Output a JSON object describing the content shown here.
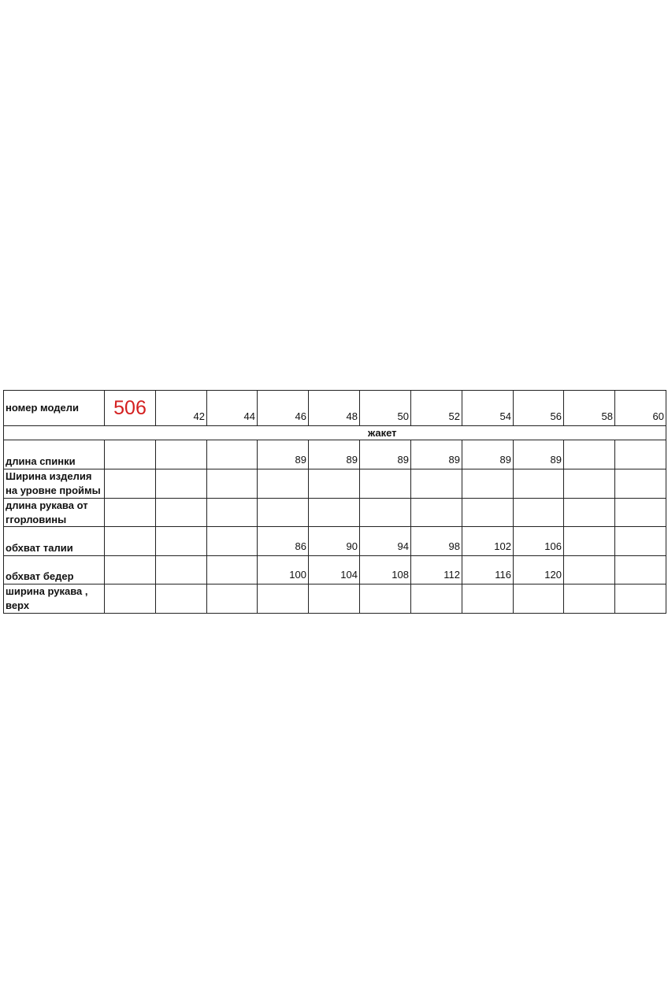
{
  "table": {
    "header_label": "номер модели",
    "model_number": "506",
    "model_color": "#d42020",
    "sizes": [
      "42",
      "44",
      "46",
      "48",
      "50",
      "52",
      "54",
      "56",
      "58",
      "60"
    ],
    "section": "жакет",
    "rows": [
      {
        "label": [
          "длина спинки"
        ],
        "values": [
          "",
          "",
          "89",
          "89",
          "89",
          "89",
          "89",
          "89",
          "",
          ""
        ]
      },
      {
        "label": [
          "Ширина изделия",
          "на уровне проймы"
        ],
        "values": [
          "",
          "",
          "",
          "",
          "",
          "",
          "",
          "",
          "",
          ""
        ]
      },
      {
        "label": [
          "длина рукава от",
          "ггорловины"
        ],
        "values": [
          "",
          "",
          "",
          "",
          "",
          "",
          "",
          "",
          "",
          ""
        ]
      },
      {
        "label": [
          "обхват талии"
        ],
        "values": [
          "",
          "",
          "86",
          "90",
          "94",
          "98",
          "102",
          "106",
          "",
          ""
        ]
      },
      {
        "label": [
          "обхват бедер"
        ],
        "values": [
          "",
          "",
          "100",
          "104",
          "108",
          "112",
          "116",
          "120",
          "",
          ""
        ]
      },
      {
        "label": [
          "ширина рукава ,",
          "верх"
        ],
        "values": [
          "",
          "",
          "",
          "",
          "",
          "",
          "",
          "",
          "",
          ""
        ]
      }
    ]
  }
}
